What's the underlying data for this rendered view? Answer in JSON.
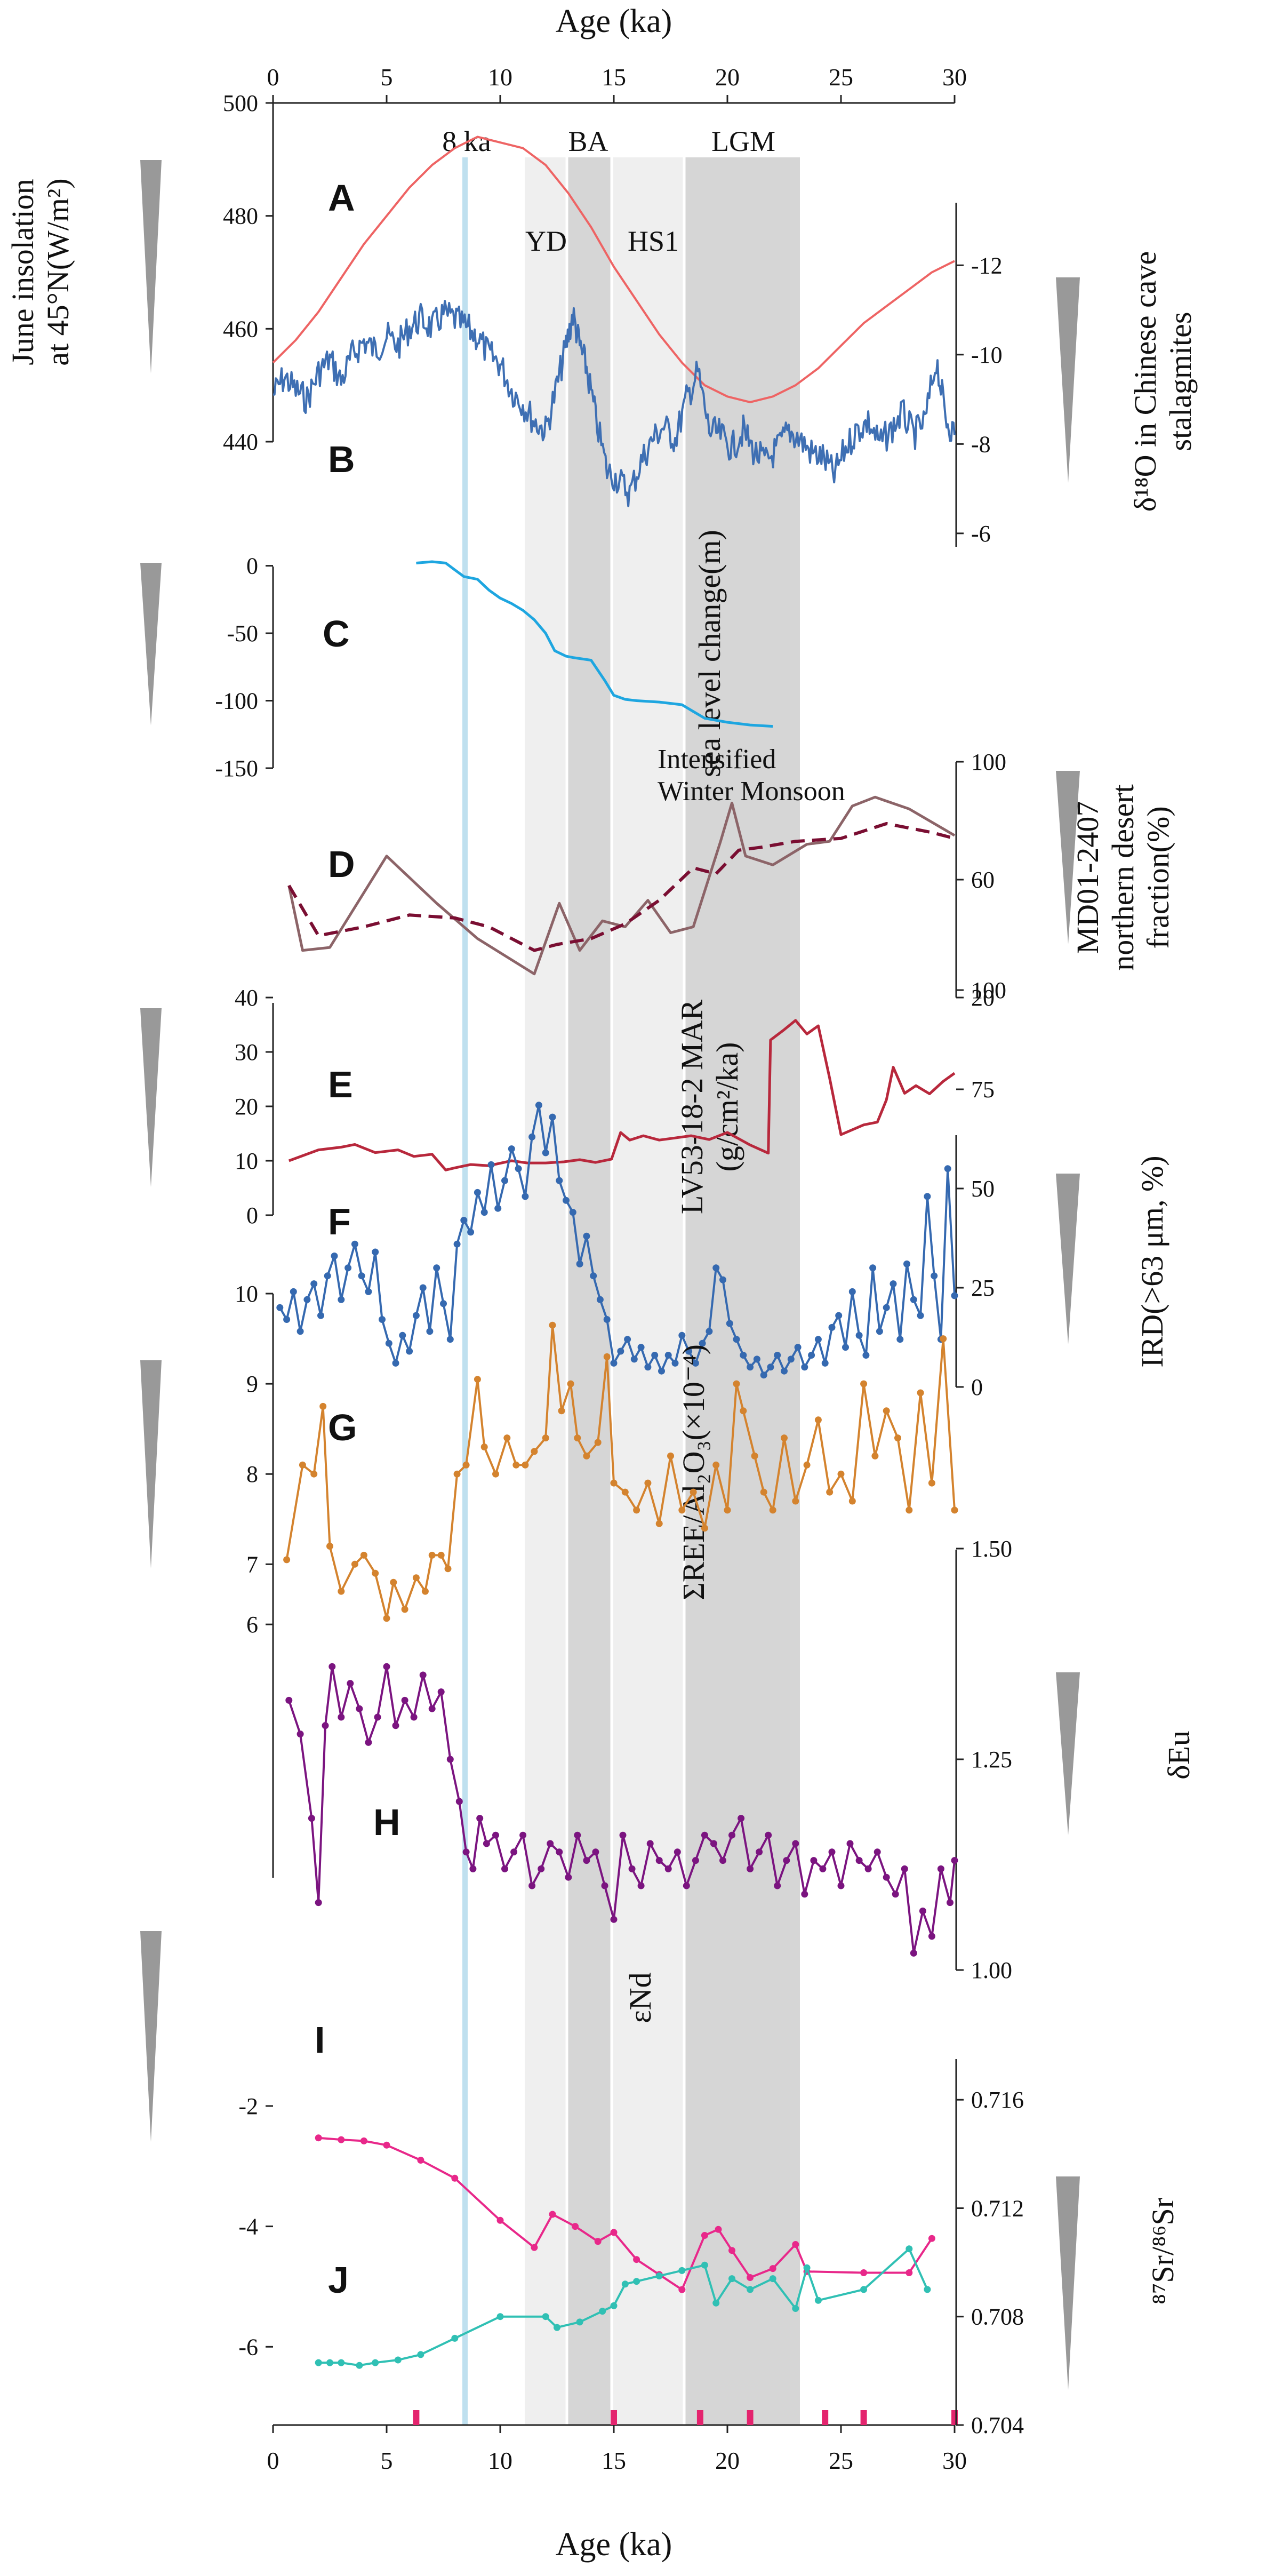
{
  "figure": {
    "top_axis_title": "Age (ka)",
    "bottom_axis_title": "Age (ka)",
    "x_range": [
      0,
      30
    ],
    "x_ticks": [
      0,
      5,
      10,
      15,
      20,
      25,
      30
    ],
    "event_labels": [
      "8 ka",
      "BA",
      "LGM",
      "YD",
      "HS1"
    ],
    "annotation": [
      "Intensified",
      "Winter Monsoon"
    ]
  },
  "colors": {
    "insolation": "#ee6464",
    "d18o": "#3e6fb3",
    "sea_level": "#1ea6e0",
    "desert_solid": "#8c6468",
    "desert_dashed": "#7a0e32",
    "mar": "#b8283c",
    "ird": "#3569b0",
    "ree": "#d4832e",
    "eu": "#7b1480",
    "nd": "#e8288a",
    "sr": "#30c0b4",
    "band_light": "#efefef",
    "band_dark": "#d6d6d6",
    "line_8ka": "#bfe0ef",
    "tick_marks": "#e4246e"
  },
  "chart_data": [
    {
      "panel": "A",
      "type": "line",
      "axis_side": "left",
      "ylabel": [
        "June insolation",
        "at 45°N(W/m²)"
      ],
      "ylim": [
        440,
        500
      ],
      "y_ticks": [
        440,
        460,
        480,
        500
      ],
      "x": [
        0,
        1,
        2,
        3,
        4,
        5,
        6,
        7,
        8,
        9,
        10,
        11,
        12,
        13,
        14,
        15,
        16,
        17,
        18,
        19,
        20,
        21,
        22,
        23,
        24,
        25,
        26,
        27,
        28,
        29,
        30
      ],
      "values": [
        454,
        458,
        463,
        469,
        475,
        480,
        485,
        489,
        492,
        494,
        493,
        492,
        489,
        484,
        478,
        471,
        465,
        459,
        454,
        450,
        448,
        447,
        448,
        450,
        453,
        457,
        461,
        464,
        467,
        470,
        472
      ]
    },
    {
      "panel": "B",
      "type": "line",
      "axis_side": "right",
      "reversed": true,
      "ylabel": [
        "δ¹⁸O in Chinese cave",
        "stalagmites"
      ],
      "ylim": [
        -5.7,
        -13.4
      ],
      "y_ticks": [
        -6,
        -8,
        -10,
        -12
      ],
      "x": [
        0,
        0.5,
        1,
        1.5,
        2,
        2.5,
        3,
        3.5,
        4,
        4.5,
        5,
        5.5,
        6,
        6.5,
        7,
        7.5,
        8,
        8.5,
        9,
        9.5,
        10,
        10.5,
        11,
        11.5,
        12,
        12.5,
        12.9,
        13.2,
        13.5,
        13.8,
        14.2,
        14.7,
        15.2,
        15.7,
        16.2,
        16.7,
        17.2,
        17.7,
        18.2,
        18.7,
        19.2,
        19.7,
        20.2,
        20.7,
        21.2,
        21.7,
        22.2,
        22.7,
        23.2,
        23.7,
        24.2,
        24.7,
        25.2,
        25.7,
        26.2,
        26.7,
        27.2,
        27.7,
        28.2,
        28.7,
        29.2,
        29.6,
        30
      ],
      "values": [
        -9.1,
        -9.5,
        -9.2,
        -9.0,
        -9.6,
        -9.9,
        -9.4,
        -10.0,
        -10.3,
        -10.1,
        -10.4,
        -10.2,
        -10.6,
        -10.8,
        -10.6,
        -10.9,
        -10.8,
        -10.6,
        -10.4,
        -10.0,
        -9.8,
        -9.2,
        -8.9,
        -8.5,
        -8.3,
        -9.3,
        -10.2,
        -10.9,
        -10.2,
        -9.7,
        -8.6,
        -7.4,
        -7.2,
        -6.9,
        -7.6,
        -8.1,
        -8.4,
        -8.1,
        -9.0,
        -9.6,
        -8.3,
        -8.2,
        -7.9,
        -8.3,
        -7.8,
        -7.6,
        -7.9,
        -8.3,
        -8.1,
        -7.8,
        -7.7,
        -7.3,
        -7.9,
        -8.3,
        -8.5,
        -8.0,
        -8.3,
        -8.7,
        -8.2,
        -8.5,
        -9.9,
        -8.6,
        -8.2
      ]
    },
    {
      "panel": "C",
      "type": "line",
      "axis_side": "left",
      "ylabel": [
        "sea level change(m)"
      ],
      "ylim": [
        -150,
        20
      ],
      "y_ticks": [
        -150,
        -100,
        -50,
        0
      ],
      "x": [
        6.3,
        7.0,
        7.6,
        8.0,
        8.4,
        9.0,
        9.5,
        10.0,
        10.5,
        11.0,
        11.5,
        12.0,
        12.4,
        12.9,
        13.2,
        14.0,
        14.6,
        15.0,
        15.5,
        16.0,
        17.0,
        18.0,
        18.5,
        19.0,
        20.0,
        21.0,
        22.0
      ],
      "values": [
        2,
        3,
        2,
        -3,
        -8,
        -10,
        -18,
        -24,
        -28,
        -33,
        -40,
        -50,
        -63,
        -67,
        -68,
        -70,
        -85,
        -96,
        -99,
        -100,
        -101,
        -103,
        -108,
        -113,
        -116,
        -118,
        -119
      ]
    },
    {
      "panel": "D",
      "type": "line",
      "axis_side": "right",
      "ylabel": [
        "MD01-2407",
        "northern desert",
        "fraction(%)"
      ],
      "ylim": [
        20,
        100
      ],
      "y_ticks": [
        20,
        60,
        100
      ],
      "series": [
        {
          "name": "solid",
          "x": [
            0.7,
            1.3,
            2.5,
            5.0,
            7.2,
            9.0,
            11.5,
            12.6,
            13.5,
            14.5,
            15.5,
            16.5,
            17.5,
            18.5,
            19.7,
            20.2,
            20.8,
            22.0,
            23.5,
            24.5,
            25.5,
            26.5,
            28.0,
            30.0
          ],
          "values": [
            58,
            36,
            37,
            68,
            52,
            40,
            28,
            52,
            36,
            46,
            44,
            53,
            42,
            44,
            73,
            86,
            68,
            65,
            72,
            73,
            85,
            88,
            84,
            75
          ]
        },
        {
          "name": "dashed",
          "x": [
            0.7,
            2.0,
            4.0,
            6.0,
            8.0,
            9.5,
            10.5,
            11.5,
            12.5,
            14.0,
            15.5,
            17.0,
            18.5,
            19.5,
            20.5,
            21.5,
            23.0,
            25.0,
            27.0,
            29.0,
            30.0
          ],
          "values": [
            58,
            41,
            44,
            48,
            47,
            44,
            40,
            36,
            38,
            40,
            45,
            53,
            64,
            62,
            70,
            71,
            73,
            74,
            79,
            76,
            74
          ]
        }
      ]
    },
    {
      "panel": "E",
      "type": "line",
      "axis_side": "left",
      "ylabel": [
        "LV53-18-2 MAR",
        "(g/cm²/ka)"
      ],
      "ylim": [
        0,
        40
      ],
      "y_ticks": [
        0,
        10,
        20,
        30,
        40
      ],
      "x": [
        0.7,
        2.0,
        3.0,
        3.6,
        4.5,
        5.5,
        6.2,
        7.0,
        7.6,
        8.0,
        8.7,
        9.5,
        10.5,
        11.2,
        12.0,
        12.8,
        13.5,
        14.2,
        14.9,
        15.3,
        15.7,
        16.3,
        17.0,
        17.7,
        18.4,
        19.2,
        20.0,
        21.0,
        21.8,
        21.9,
        22.5,
        23.0,
        23.5,
        24.0,
        24.5,
        25.0,
        26.0,
        26.6,
        27.0,
        27.3,
        27.8,
        28.3,
        28.9,
        29.5,
        30.0
      ],
      "values": [
        10,
        12,
        12.5,
        13,
        11.5,
        12,
        10.8,
        11.2,
        8.3,
        8.7,
        9.3,
        9.1,
        10,
        9.6,
        9.6,
        9.8,
        10.2,
        9.7,
        10.3,
        15.2,
        13.8,
        14.6,
        13.8,
        14.2,
        14.6,
        13.9,
        15.2,
        12.9,
        11.4,
        32.2,
        34.1,
        35.8,
        33.3,
        34.8,
        25.2,
        14.8,
        16.6,
        17.1,
        21.2,
        27.2,
        22.4,
        23.8,
        22.3,
        24.6,
        26.1
      ]
    },
    {
      "panel": "F",
      "type": "line",
      "axis_side": "right",
      "ylabel": [
        "IRD(>63 μm, %)"
      ],
      "ylim": [
        0,
        100
      ],
      "y_ticks": [
        0,
        25,
        50,
        75,
        100
      ],
      "x": [
        0.3,
        0.6,
        0.9,
        1.2,
        1.5,
        1.8,
        2.1,
        2.4,
        2.7,
        3.0,
        3.3,
        3.6,
        3.9,
        4.2,
        4.5,
        4.8,
        5.1,
        5.4,
        5.7,
        6.0,
        6.3,
        6.6,
        6.9,
        7.2,
        7.5,
        7.8,
        8.1,
        8.4,
        8.7,
        9.0,
        9.3,
        9.6,
        9.9,
        10.2,
        10.5,
        10.8,
        11.1,
        11.4,
        11.7,
        12.0,
        12.3,
        12.6,
        12.9,
        13.2,
        13.5,
        13.8,
        14.1,
        14.4,
        14.7,
        15.0,
        15.3,
        15.6,
        15.9,
        16.2,
        16.5,
        16.8,
        17.1,
        17.4,
        17.7,
        18.0,
        18.3,
        18.6,
        18.9,
        19.2,
        19.5,
        19.8,
        20.1,
        20.4,
        20.7,
        21.0,
        21.3,
        21.6,
        21.9,
        22.2,
        22.5,
        22.8,
        23.1,
        23.4,
        23.7,
        24.0,
        24.3,
        24.6,
        24.9,
        25.2,
        25.5,
        25.8,
        26.1,
        26.4,
        26.7,
        27.0,
        27.3,
        27.6,
        27.9,
        28.2,
        28.5,
        28.8,
        29.1,
        29.4,
        29.7,
        30.0
      ],
      "values": [
        20,
        17,
        24,
        14,
        22,
        26,
        18,
        28,
        33,
        22,
        30,
        36,
        28,
        24,
        34,
        17,
        11,
        6,
        13,
        9,
        18,
        25,
        14,
        30,
        21,
        12,
        36,
        42,
        39,
        49,
        44,
        56,
        45,
        52,
        60,
        55,
        48,
        63,
        71,
        59,
        68,
        52,
        47,
        44,
        31,
        38,
        28,
        22,
        17,
        6,
        9,
        12,
        7,
        10,
        5,
        8,
        4,
        8,
        6,
        13,
        9,
        6,
        11,
        14,
        30,
        27,
        16,
        12,
        8,
        5,
        7,
        3,
        5,
        8,
        4,
        7,
        10,
        5,
        8,
        12,
        6,
        15,
        18,
        10,
        24,
        13,
        8,
        30,
        14,
        20,
        26,
        12,
        31,
        22,
        18,
        48,
        28,
        12,
        55,
        23
      ]
    },
    {
      "panel": "G",
      "type": "line",
      "axis_side": "left",
      "ylabel": [
        "ΣREE/Al₂O₃(×10⁻⁴)"
      ],
      "ylim": [
        6.05,
        10
      ],
      "y_ticks": [
        7,
        8,
        9,
        10
      ],
      "x": [
        0.6,
        1.3,
        1.8,
        2.2,
        2.5,
        3.0,
        3.6,
        4.0,
        4.5,
        5.0,
        5.3,
        5.8,
        6.3,
        6.7,
        7.0,
        7.4,
        7.7,
        8.1,
        8.5,
        9.0,
        9.3,
        9.8,
        10.3,
        10.7,
        11.1,
        11.5,
        12.0,
        12.3,
        12.7,
        13.1,
        13.4,
        13.8,
        14.3,
        14.7,
        15.0,
        15.5,
        16.0,
        16.5,
        17.0,
        17.5,
        18.0,
        18.5,
        19.0,
        19.5,
        20.0,
        20.4,
        20.7,
        21.2,
        21.6,
        22.0,
        22.5,
        23.0,
        23.5,
        24.0,
        24.5,
        25.0,
        25.5,
        26.0,
        26.5,
        27.0,
        27.5,
        28.0,
        28.5,
        29.0,
        29.5,
        30.0
      ],
      "values": [
        7.05,
        8.1,
        8.0,
        8.75,
        7.2,
        6.7,
        7.0,
        7.1,
        6.9,
        6.4,
        6.8,
        6.5,
        6.85,
        6.7,
        7.1,
        7.1,
        6.95,
        8.0,
        8.1,
        9.05,
        8.3,
        8.0,
        8.4,
        8.1,
        8.1,
        8.25,
        8.4,
        9.65,
        8.7,
        9.0,
        8.4,
        8.2,
        8.35,
        9.3,
        7.9,
        7.8,
        7.6,
        7.9,
        7.45,
        8.2,
        7.6,
        7.8,
        7.4,
        8.1,
        7.6,
        9.0,
        8.7,
        8.2,
        7.8,
        7.6,
        8.4,
        7.7,
        8.1,
        8.6,
        7.8,
        8.0,
        7.7,
        9.0,
        8.2,
        8.7,
        8.4,
        7.6,
        8.9,
        7.9,
        9.5,
        7.6
      ]
    },
    {
      "panel": "H",
      "type": "line",
      "axis_side": "right",
      "ylabel": [
        "δEu"
      ],
      "ylim": [
        1.0,
        1.5
      ],
      "y_ticks": [
        1.0,
        1.25,
        1.5
      ],
      "x": [
        0.7,
        1.2,
        1.7,
        2.0,
        2.3,
        2.6,
        3.0,
        3.4,
        3.8,
        4.2,
        4.6,
        5.0,
        5.4,
        5.8,
        6.2,
        6.6,
        7.0,
        7.4,
        7.8,
        8.2,
        8.5,
        8.8,
        9.1,
        9.4,
        9.8,
        10.2,
        10.6,
        11.0,
        11.4,
        11.8,
        12.2,
        12.6,
        13.0,
        13.4,
        13.8,
        14.2,
        14.6,
        15.0,
        15.4,
        15.8,
        16.2,
        16.6,
        17.0,
        17.4,
        17.8,
        18.2,
        18.6,
        19.0,
        19.4,
        19.8,
        20.2,
        20.6,
        21.0,
        21.4,
        21.8,
        22.2,
        22.6,
        23.0,
        23.4,
        23.8,
        24.2,
        24.6,
        25.0,
        25.4,
        25.8,
        26.2,
        26.6,
        27.0,
        27.4,
        27.8,
        28.2,
        28.6,
        29.0,
        29.4,
        29.8,
        30.0
      ],
      "values": [
        1.32,
        1.28,
        1.18,
        1.08,
        1.29,
        1.36,
        1.3,
        1.34,
        1.31,
        1.27,
        1.3,
        1.36,
        1.29,
        1.32,
        1.3,
        1.35,
        1.31,
        1.33,
        1.25,
        1.2,
        1.14,
        1.12,
        1.18,
        1.15,
        1.16,
        1.12,
        1.14,
        1.16,
        1.1,
        1.12,
        1.15,
        1.14,
        1.11,
        1.16,
        1.13,
        1.14,
        1.1,
        1.06,
        1.16,
        1.12,
        1.1,
        1.15,
        1.13,
        1.12,
        1.14,
        1.1,
        1.13,
        1.16,
        1.15,
        1.13,
        1.16,
        1.18,
        1.12,
        1.14,
        1.16,
        1.1,
        1.13,
        1.15,
        1.09,
        1.13,
        1.12,
        1.14,
        1.1,
        1.15,
        1.13,
        1.12,
        1.14,
        1.11,
        1.09,
        1.12,
        1.02,
        1.07,
        1.04,
        1.12,
        1.08,
        1.13
      ]
    },
    {
      "panel": "I",
      "type": "line",
      "axis_side": "left",
      "ylabel": [
        "εNd"
      ],
      "ylim": [
        -7.3,
        6.4
      ],
      "y_ticks": [
        -6,
        -4,
        -2,
        6
      ],
      "x": [
        2.0,
        3.0,
        4.0,
        5.0,
        6.5,
        8.0,
        10.0,
        11.5,
        12.3,
        13.3,
        14.3,
        15.0,
        16.0,
        17.0,
        18.0,
        19.0,
        19.6,
        20.2,
        21.0,
        22.0,
        23.0,
        23.5,
        26.0,
        28.0,
        29.0
      ],
      "values": [
        -2.53,
        -2.56,
        -2.58,
        -2.65,
        -2.9,
        -3.2,
        -3.9,
        -4.35,
        -3.8,
        -4.0,
        -4.25,
        -4.1,
        -4.55,
        -4.8,
        -5.05,
        -4.15,
        -4.05,
        -4.4,
        -4.85,
        -4.7,
        -4.3,
        -4.75,
        -4.77,
        -4.77,
        -4.2
      ]
    },
    {
      "panel": "J",
      "type": "line",
      "axis_side": "right",
      "ylabel": [
        "⁸⁷Sr/⁸⁶Sr"
      ],
      "ylim": [
        0.704,
        0.7175
      ],
      "y_ticks": [
        0.704,
        0.708,
        0.712,
        0.716
      ],
      "x": [
        2.0,
        2.5,
        3.0,
        3.8,
        4.5,
        5.5,
        6.5,
        8.0,
        10.0,
        12.0,
        12.5,
        13.5,
        14.5,
        15.0,
        15.5,
        16.0,
        17.0,
        18.0,
        19.0,
        19.5,
        20.2,
        21.0,
        22.0,
        23.0,
        23.5,
        24.0,
        26.0,
        28.0,
        28.8
      ],
      "values": [
        0.7063,
        0.7063,
        0.7063,
        0.7062,
        0.7063,
        0.7064,
        0.7066,
        0.7072,
        0.708,
        0.708,
        0.7076,
        0.7078,
        0.7082,
        0.7084,
        0.7092,
        0.7093,
        0.7095,
        0.7097,
        0.7099,
        0.7085,
        0.7094,
        0.709,
        0.7094,
        0.7083,
        0.7098,
        0.7086,
        0.709,
        0.7105,
        0.709
      ]
    }
  ],
  "bottom_ticks_ka": [
    6.3,
    15.0,
    18.8,
    21.0,
    24.3,
    26.0,
    30.0
  ]
}
